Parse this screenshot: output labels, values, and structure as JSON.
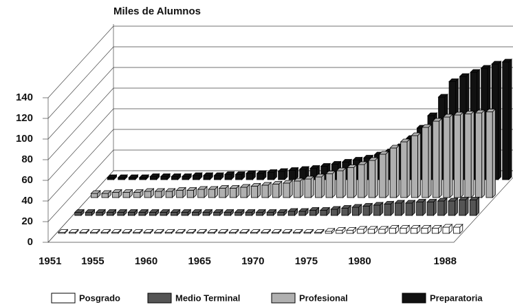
{
  "chart_data": {
    "type": "bar3d",
    "title": "Miles de Alumnos",
    "categories": [
      "1951",
      null,
      null,
      null,
      "1955",
      null,
      null,
      null,
      null,
      "1960",
      null,
      null,
      null,
      null,
      "1965",
      null,
      null,
      null,
      null,
      "1970",
      null,
      null,
      null,
      null,
      "1975",
      null,
      null,
      null,
      null,
      "1980",
      null,
      null,
      null,
      null,
      null,
      null,
      null,
      "1988"
    ],
    "ylim": [
      0,
      140
    ],
    "yticks": [
      0,
      20,
      40,
      60,
      80,
      100,
      120,
      140
    ],
    "grid": true,
    "series": [
      {
        "name": "Posgrado",
        "color": "#ffffff",
        "values": [
          1,
          1,
          1,
          1,
          1,
          1,
          1,
          1,
          1,
          1,
          1,
          1,
          1,
          1,
          1,
          1,
          1,
          1,
          1,
          1,
          1,
          1,
          1,
          1,
          1,
          2,
          3,
          3,
          4,
          4,
          4,
          5,
          5,
          5,
          5,
          5,
          6,
          6
        ]
      },
      {
        "name": "Medio Terminal",
        "color": "#555555",
        "values": [
          3,
          3,
          3,
          3,
          3,
          3,
          3,
          3,
          3,
          3,
          3,
          3,
          3,
          3,
          3,
          3,
          3,
          3,
          3,
          3,
          4,
          4,
          5,
          5,
          6,
          7,
          8,
          9,
          10,
          11,
          12,
          12,
          13,
          13,
          14,
          14,
          15,
          15
        ]
      },
      {
        "name": "Profesional",
        "color": "#b0b0b0",
        "values": [
          4,
          4,
          5,
          5,
          5,
          6,
          6,
          6,
          7,
          7,
          8,
          8,
          9,
          9,
          10,
          11,
          12,
          13,
          14,
          16,
          18,
          20,
          23,
          26,
          29,
          32,
          36,
          42,
          48,
          54,
          60,
          68,
          74,
          78,
          80,
          81,
          82,
          83
        ]
      },
      {
        "name": "Preparatoria",
        "color": "#111111",
        "values": [
          2,
          2,
          2,
          2,
          3,
          3,
          3,
          3,
          4,
          4,
          4,
          5,
          5,
          6,
          6,
          7,
          8,
          9,
          10,
          11,
          13,
          15,
          17,
          19,
          21,
          24,
          27,
          32,
          40,
          50,
          62,
          80,
          95,
          100,
          104,
          108,
          112,
          114
        ]
      }
    ]
  }
}
